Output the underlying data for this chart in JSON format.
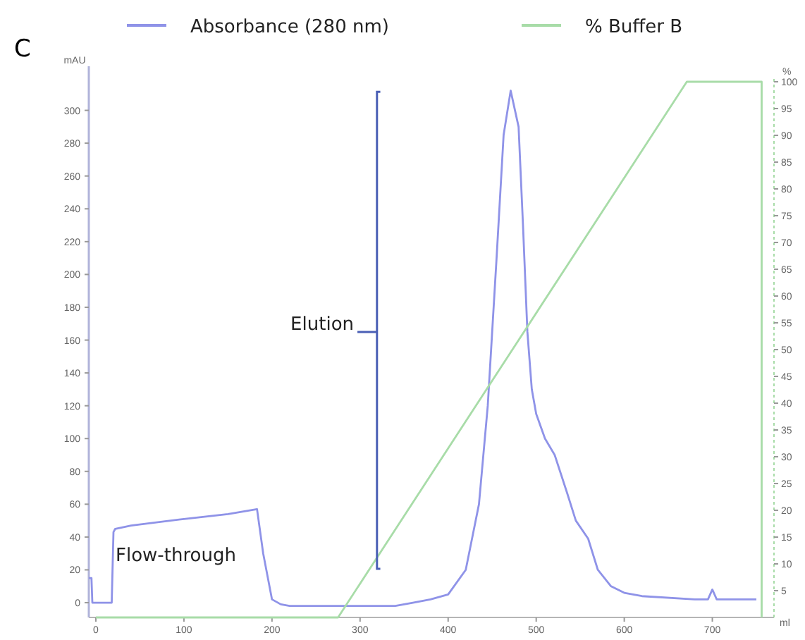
{
  "chart_data": {
    "type": "line",
    "title": "C",
    "xlabel": "ml",
    "ylabel": "mAU",
    "y2label": "%",
    "xlim": [
      -8,
      770
    ],
    "xticks": [
      0,
      100,
      200,
      300,
      400,
      500,
      600,
      700
    ],
    "ylim": [
      -9,
      320
    ],
    "yticks": [
      0,
      20,
      40,
      60,
      80,
      100,
      120,
      140,
      160,
      180,
      200,
      220,
      240,
      260,
      280,
      300
    ],
    "y2lim": [
      0,
      100
    ],
    "y2ticks": [
      5,
      10,
      15,
      20,
      25,
      30,
      35,
      40,
      45,
      50,
      55,
      60,
      65,
      70,
      75,
      80,
      85,
      90,
      95,
      100
    ],
    "legend": "top",
    "grid": false,
    "marker": "none",
    "line_style": "solid",
    "series": [
      {
        "name": "Absorbance (280 nm)",
        "color": "#8f93e8",
        "x": [
          -8,
          -5,
          -4,
          18,
          20,
          22,
          40,
          100,
          150,
          183,
          190,
          200,
          210,
          220,
          260,
          300,
          340,
          360,
          380,
          400,
          420,
          435,
          445,
          455,
          463,
          471,
          480,
          485,
          490,
          495,
          500,
          510,
          521,
          535,
          545,
          559,
          570,
          585,
          600,
          620,
          680,
          695,
          700,
          705,
          750
        ],
        "values": [
          15,
          15,
          0,
          0,
          43,
          45,
          47,
          51,
          54,
          57,
          30,
          2,
          -1,
          -2,
          -2,
          -2,
          -2,
          0,
          2,
          5,
          20,
          60,
          120,
          210,
          285,
          312,
          290,
          230,
          165,
          130,
          115,
          100,
          90,
          67,
          50,
          39,
          20,
          10,
          6,
          4,
          2,
          2,
          8,
          2,
          2
        ]
      },
      {
        "name": "% Buffer B",
        "color": "#a8dca8",
        "axis": "y2",
        "x": [
          0,
          275,
          671,
          756,
          756
        ],
        "values": [
          0,
          0,
          100,
          100,
          0
        ]
      }
    ],
    "annotations": [
      "Flow-through",
      "Elution"
    ]
  }
}
